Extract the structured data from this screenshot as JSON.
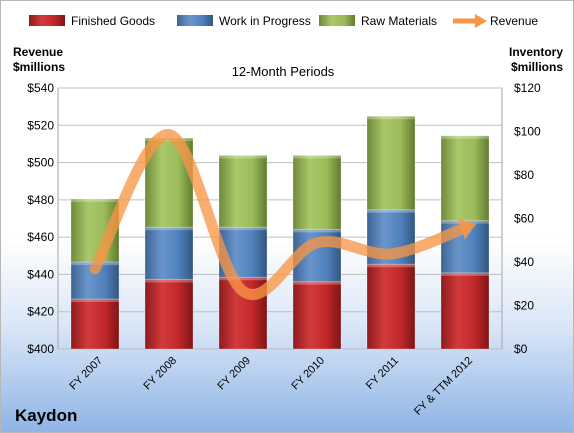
{
  "company": "Kaydon",
  "chart_data": {
    "type": "bar",
    "subtitle": "12-Month Periods",
    "categories": [
      "FY 2007",
      "FY 2008",
      "FY 2009",
      "FY 2010",
      "FY 2011",
      "FY & TTM 2012"
    ],
    "left_axis": {
      "label_line1": "Revenue",
      "label_line2": "$millions",
      "range": [
        400,
        540
      ],
      "ticks": [
        "$400",
        "$420",
        "$440",
        "$460",
        "$480",
        "$500",
        "$520",
        "$540"
      ]
    },
    "right_axis": {
      "label_line1": "Inventory",
      "label_line2": "$millions",
      "range": [
        0,
        120
      ],
      "ticks": [
        "$0",
        "$20",
        "$40",
        "$60",
        "$80",
        "$100",
        "$120"
      ]
    },
    "stacked": true,
    "series": [
      {
        "name": "Finished Goods",
        "axis": "right",
        "color": "#c0282a",
        "values": [
          23,
          32,
          33,
          31,
          39,
          35
        ]
      },
      {
        "name": "Work in Progress",
        "axis": "right",
        "color": "#4f81bd",
        "values": [
          17,
          24,
          23,
          24,
          25,
          24
        ]
      },
      {
        "name": "Raw Materials",
        "axis": "right",
        "color": "#9bbb59",
        "values": [
          29,
          41,
          33,
          34,
          43,
          39
        ]
      },
      {
        "name": "Revenue",
        "axis": "left",
        "type": "line",
        "color": "#f79646",
        "values": [
          443,
          515,
          431,
          457,
          451,
          465
        ]
      }
    ],
    "grid": true,
    "legend": "top"
  }
}
